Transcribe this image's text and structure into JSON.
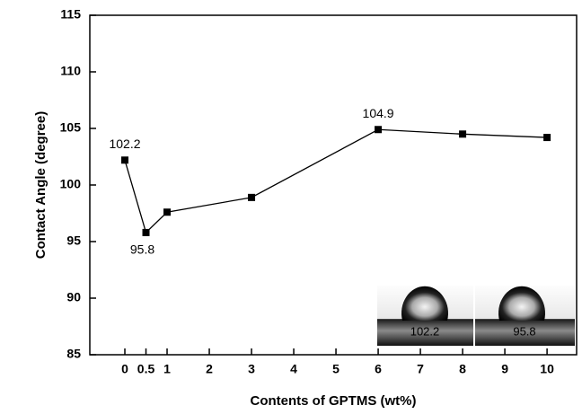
{
  "chart_data": {
    "type": "line",
    "x_label": "Contents of GPTMS (wt%)",
    "y_label": "Contact Angle (degree)",
    "x": [
      0,
      0.5,
      1,
      3,
      6,
      8,
      10
    ],
    "series": [
      {
        "name": null,
        "color": "#000000",
        "values": [
          102.2,
          95.8,
          97.6,
          98.9,
          104.9,
          104.5,
          104.2
        ],
        "value_labels": [
          "102.2",
          "95.8",
          null,
          null,
          "104.9",
          null,
          null
        ],
        "value_label_colors": [
          "#ee1111",
          "#000000",
          null,
          null,
          "#000000",
          null,
          null
        ]
      }
    ],
    "xlim": [
      -0.83,
      10.7
    ],
    "xticks": [
      0,
      0.5,
      1,
      2,
      3,
      4,
      5,
      6,
      7,
      8,
      9,
      10
    ],
    "ylim": [
      85,
      115
    ],
    "yticks": [
      85,
      90,
      95,
      100,
      105,
      110,
      115
    ],
    "grid": false,
    "insets": [
      {
        "label": "102.2",
        "color": "#ee1111"
      },
      {
        "label": "95.8",
        "color": "#ffffff"
      }
    ]
  }
}
